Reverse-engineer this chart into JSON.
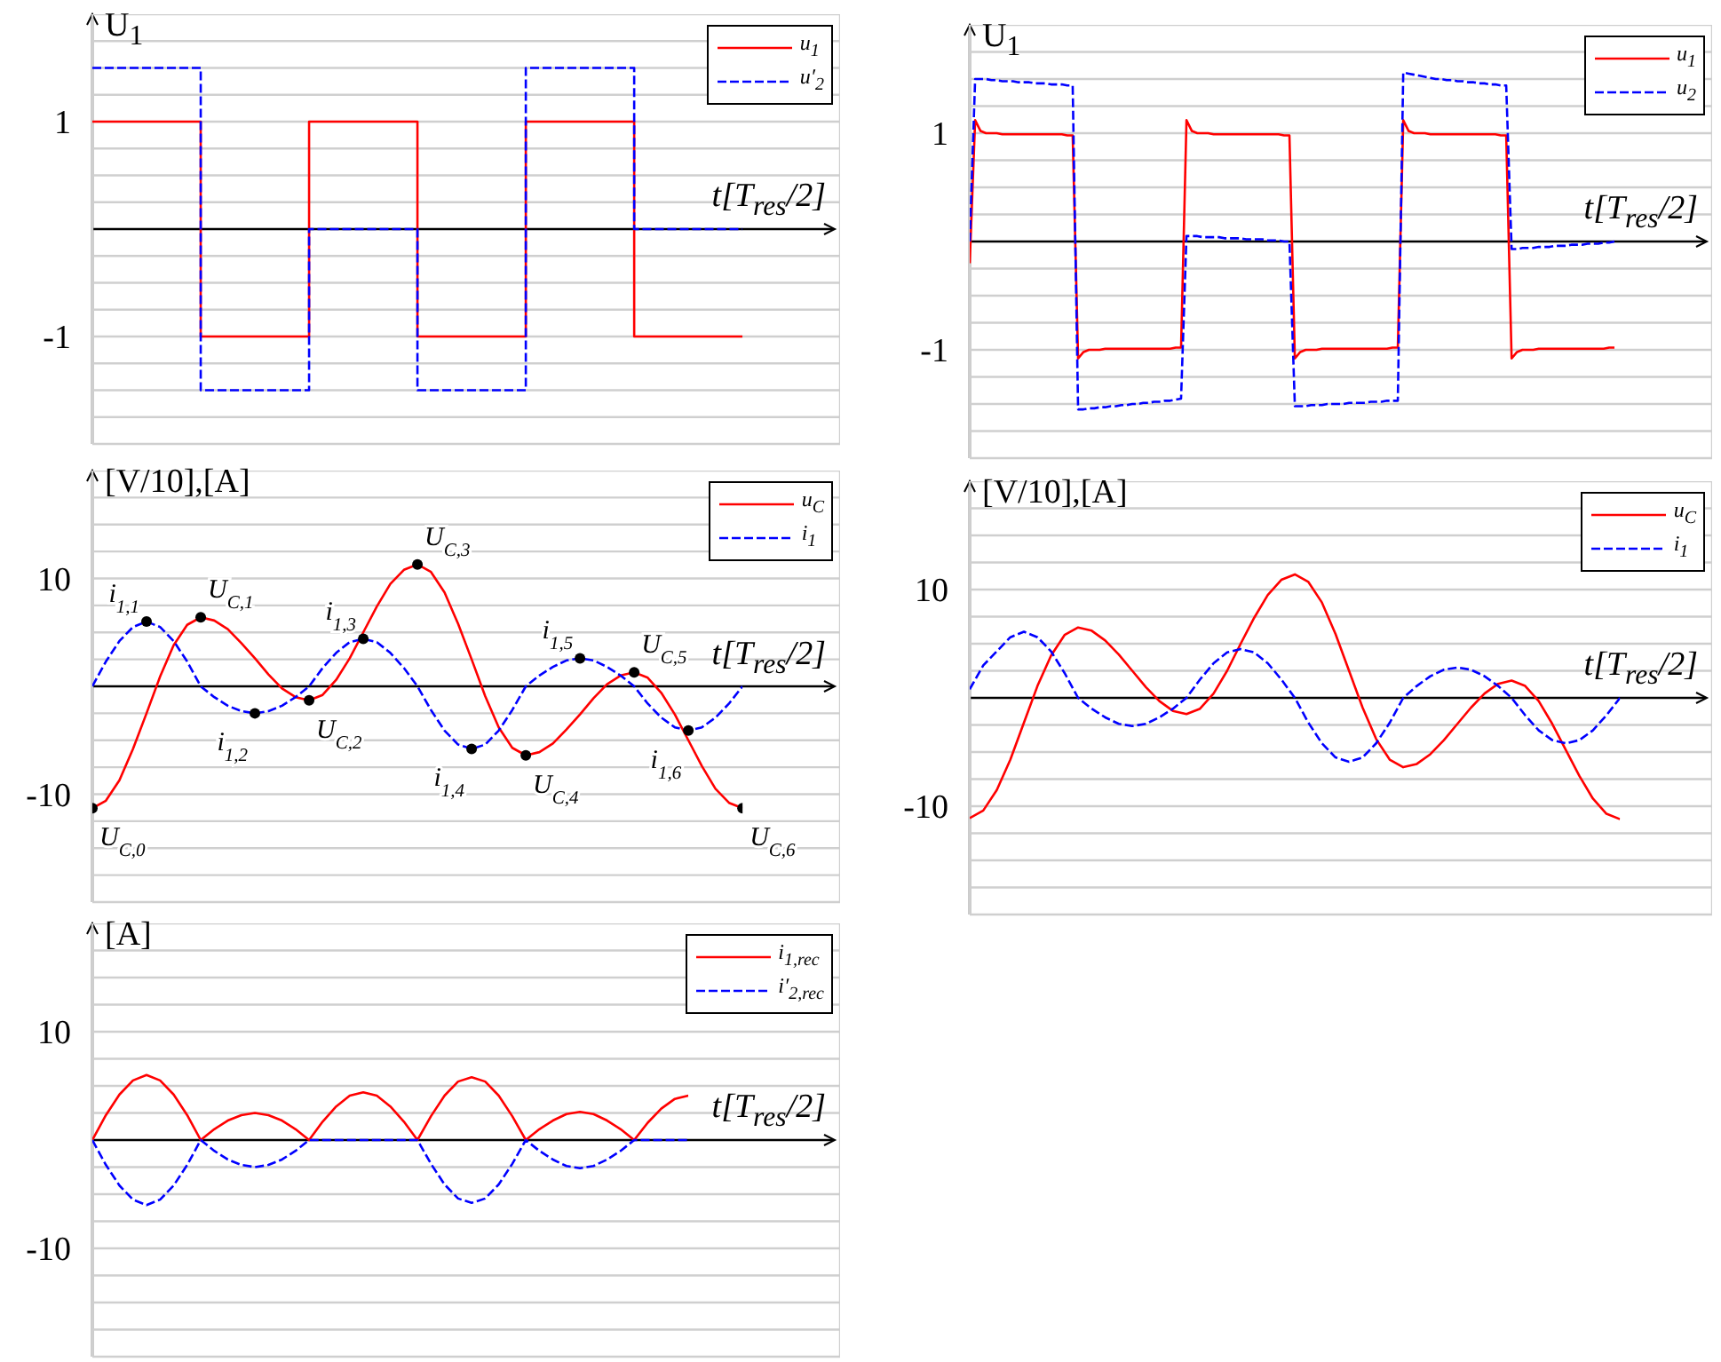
{
  "chart_data": [
    {
      "type": "step",
      "xlabel": "t[T$_{res}$/2]",
      "ylabel": "U$_{1}$",
      "categories": [
        null,
        null,
        null,
        null,
        null,
        null,
        null
      ],
      "series": [
        {
          "name": "u$_{1}$",
          "color": "#ff0000",
          "line_style": "solid",
          "values": [
            1,
            -1,
            1,
            -1,
            1,
            -1,
            -1
          ]
        },
        {
          "name": "u′$_{2}$",
          "color": "#0000ff",
          "line_style": "dashed",
          "values": [
            1.5,
            -1.5,
            0,
            -1.5,
            1.5,
            0,
            0
          ]
        }
      ],
      "ylim": [
        -2,
        2
      ],
      "yticks": [
        {
          "value": -2,
          "label": null
        },
        {
          "value": -1.75,
          "label": null
        },
        {
          "value": -1.5,
          "label": null
        },
        {
          "value": -1.25,
          "label": null
        },
        -1,
        {
          "value": -0.75,
          "label": null
        },
        {
          "value": -0.5,
          "label": null
        },
        {
          "value": -0.25,
          "label": null
        },
        {
          "value": 0,
          "label": null
        },
        {
          "value": 0.25,
          "label": null
        },
        {
          "value": 0.5,
          "label": null
        },
        {
          "value": 0.75,
          "label": null
        },
        1,
        {
          "value": 1.25,
          "label": null
        },
        {
          "value": 1.5,
          "label": null
        },
        {
          "value": 1.75,
          "label": null
        },
        {
          "value": 2,
          "label": null
        }
      ],
      "grid": true,
      "legend": "top right",
      "tick_labels": "y",
      "marker": "none"
    },
    {
      "type": "line",
      "xlabel": "t[T$_{res}$/2]",
      "ylabel": "U$_{1}$",
      "categories": [
        null,
        null,
        null,
        null,
        null,
        null,
        null,
        null,
        null,
        null,
        null,
        null,
        null,
        null,
        null,
        null,
        null,
        null,
        null,
        null,
        null,
        null,
        null,
        null,
        null,
        null,
        null,
        null,
        null,
        null,
        null,
        null,
        null,
        null,
        null,
        null,
        null,
        null,
        null,
        null,
        null,
        null,
        null,
        null,
        null,
        null,
        null,
        null,
        null,
        null,
        null,
        null,
        null,
        null,
        null,
        null,
        null,
        null,
        null,
        null,
        null,
        null,
        null,
        null,
        null,
        null,
        null,
        null,
        null,
        null,
        null,
        null,
        null,
        null,
        null,
        null,
        null,
        null,
        null,
        null,
        null,
        null,
        null,
        null,
        null,
        null,
        null,
        null,
        null,
        null,
        null,
        null,
        null,
        null,
        null,
        null,
        null,
        null,
        null,
        null,
        null,
        null,
        null,
        null,
        null,
        null,
        null,
        null,
        null,
        null,
        null,
        null,
        null,
        null,
        null,
        null,
        null,
        null,
        null,
        null
      ],
      "series": [
        {
          "name": "u$_{1}$",
          "color": "#ff0000",
          "line_style": "solid",
          "values": [
            -0.2,
            1.12,
            1.02,
            1.0,
            1.0,
            1.0,
            0.99,
            0.99,
            0.99,
            0.99,
            0.99,
            0.99,
            0.99,
            0.99,
            0.99,
            0.99,
            0.99,
            0.99,
            0.98,
            0.98,
            -1.08,
            -1.02,
            -1.0,
            -1.0,
            -1.0,
            -0.99,
            -0.99,
            -0.99,
            -0.99,
            -0.99,
            -0.99,
            -0.99,
            -0.99,
            -0.99,
            -0.99,
            -0.99,
            -0.99,
            -0.99,
            -0.98,
            -0.98,
            1.12,
            1.02,
            1.0,
            1.0,
            1.0,
            0.99,
            0.99,
            0.99,
            0.99,
            0.99,
            0.99,
            0.99,
            0.99,
            0.99,
            0.99,
            0.99,
            0.99,
            0.99,
            0.98,
            0.98,
            -1.08,
            -1.02,
            -1.0,
            -1.0,
            -1.0,
            -0.99,
            -0.99,
            -0.99,
            -0.99,
            -0.99,
            -0.99,
            -0.99,
            -0.99,
            -0.99,
            -0.99,
            -0.99,
            -0.99,
            -0.99,
            -0.98,
            -0.98,
            1.12,
            1.02,
            1.0,
            1.0,
            1.0,
            0.99,
            0.99,
            0.99,
            0.99,
            0.99,
            0.99,
            0.99,
            0.99,
            0.99,
            0.99,
            0.99,
            0.99,
            0.99,
            0.98,
            0.98,
            -1.08,
            -1.02,
            -1.0,
            -1.0,
            -1.0,
            -0.99,
            -0.99,
            -0.99,
            -0.99,
            -0.99,
            -0.99,
            -0.99,
            -0.99,
            -0.99,
            -0.99,
            -0.99,
            -0.99,
            -0.99,
            -0.98,
            -0.98
          ]
        },
        {
          "name": "u$_{2}$",
          "color": "#0000ff",
          "line_style": "dashed",
          "values": [
            0,
            1.5,
            1.5,
            1.5,
            1.49,
            1.49,
            1.48,
            1.48,
            1.48,
            1.47,
            1.47,
            1.47,
            1.46,
            1.46,
            1.46,
            1.45,
            1.45,
            1.45,
            1.44,
            1.44,
            -1.55,
            -1.55,
            -1.54,
            -1.54,
            -1.53,
            -1.53,
            -1.52,
            -1.52,
            -1.51,
            -1.51,
            -1.5,
            -1.5,
            -1.49,
            -1.49,
            -1.48,
            -1.48,
            -1.47,
            -1.47,
            -1.46,
            -1.45,
            0.05,
            0.05,
            0.05,
            0.04,
            0.04,
            0.04,
            0.04,
            0.03,
            0.03,
            0.03,
            0.03,
            0.02,
            0.02,
            0.02,
            0.02,
            0.01,
            0.01,
            0.01,
            0,
            0,
            -1.52,
            -1.52,
            -1.52,
            -1.51,
            -1.51,
            -1.51,
            -1.5,
            -1.5,
            -1.5,
            -1.5,
            -1.49,
            -1.49,
            -1.49,
            -1.49,
            -1.48,
            -1.48,
            -1.48,
            -1.47,
            -1.47,
            -1.47,
            1.56,
            1.55,
            1.54,
            1.53,
            1.52,
            1.51,
            1.5,
            1.5,
            1.49,
            1.49,
            1.48,
            1.48,
            1.47,
            1.47,
            1.46,
            1.46,
            1.45,
            1.45,
            1.44,
            1.44,
            -0.07,
            -0.07,
            -0.06,
            -0.06,
            -0.06,
            -0.05,
            -0.05,
            -0.05,
            -0.04,
            -0.04,
            -0.04,
            -0.03,
            -0.03,
            -0.03,
            -0.02,
            -0.02,
            -0.02,
            -0.01,
            -0.01,
            0
          ]
        }
      ],
      "ylim": [
        -2,
        2
      ],
      "yticks": [
        {
          "value": -2,
          "label": null
        },
        {
          "value": -1.75,
          "label": null
        },
        {
          "value": -1.5,
          "label": null
        },
        {
          "value": -1.25,
          "label": null
        },
        -1,
        {
          "value": -0.75,
          "label": null
        },
        {
          "value": -0.5,
          "label": null
        },
        {
          "value": -0.25,
          "label": null
        },
        {
          "value": 0,
          "label": null
        },
        {
          "value": 0.25,
          "label": null
        },
        {
          "value": 0.5,
          "label": null
        },
        {
          "value": 0.75,
          "label": null
        },
        1,
        {
          "value": 1.25,
          "label": null
        },
        {
          "value": 1.5,
          "label": null
        },
        {
          "value": 1.75,
          "label": null
        },
        {
          "value": 2,
          "label": null
        }
      ],
      "grid": true,
      "legend": "top right",
      "tick_labels": "y",
      "marker": "none"
    },
    {
      "type": "line",
      "xlabel": "t[T$_{res}$/2]",
      "ylabel": "[V/10],[A]",
      "categories": [
        null,
        null,
        null,
        null,
        null,
        null,
        null,
        null,
        null,
        null,
        null,
        null,
        null,
        null,
        null,
        null,
        null,
        null,
        null,
        null,
        null,
        null,
        null,
        null,
        null,
        null,
        null,
        null,
        null,
        null,
        null,
        null,
        null,
        null,
        null,
        null,
        null,
        null,
        null,
        null,
        null,
        null,
        null,
        null,
        null,
        null,
        null,
        null,
        null
      ],
      "series": [
        {
          "name": "u$_{C}$",
          "color": "#ff0000",
          "line_style": "solid",
          "values": [
            -11.3,
            -10.6,
            -8.7,
            -5.8,
            -2.5,
            0.9,
            3.8,
            5.7,
            6.4,
            6.1,
            5.3,
            4.0,
            2.6,
            1.1,
            -0.2,
            -1.0,
            -1.3,
            -0.8,
            0.6,
            2.6,
            5.0,
            7.4,
            9.5,
            10.8,
            11.3,
            10.6,
            8.7,
            5.8,
            2.5,
            -0.9,
            -3.8,
            -5.7,
            -6.4,
            -6.1,
            -5.3,
            -4.0,
            -2.6,
            -1.1,
            0.2,
            1.0,
            1.3,
            0.8,
            -0.6,
            -2.6,
            -5.0,
            -7.4,
            -9.5,
            -10.8,
            -11.3
          ]
        },
        {
          "name": "i$_{1}$",
          "color": "#0000ff",
          "line_style": "dashed",
          "values": [
            0,
            2.3,
            4.2,
            5.5,
            6.0,
            5.5,
            4.2,
            2.3,
            0,
            -1.0,
            -1.8,
            -2.3,
            -2.5,
            -2.3,
            -1.8,
            -1.0,
            0,
            1.7,
            3.1,
            4.1,
            4.4,
            4.1,
            3.1,
            1.7,
            0,
            -2.2,
            -4.1,
            -5.4,
            -5.8,
            -5.4,
            -4.1,
            -2.2,
            0,
            1.0,
            1.8,
            2.4,
            2.6,
            2.4,
            1.8,
            1.0,
            0,
            -1.6,
            -2.9,
            -3.8,
            -4.1,
            -3.8,
            -2.9,
            -1.6,
            0
          ]
        },
        {
          "type": "scatter",
          "color": "#000000",
          "marker": "circle",
          "values": [
            -11.3,
            null,
            null,
            null,
            6.0,
            null,
            null,
            null,
            6.4,
            null,
            null,
            null,
            -2.5,
            null,
            null,
            null,
            -1.3,
            null,
            null,
            null,
            4.4,
            null,
            null,
            null,
            11.3,
            null,
            null,
            null,
            -5.8,
            null,
            null,
            null,
            -6.4,
            null,
            null,
            null,
            2.6,
            null,
            null,
            null,
            1.3,
            null,
            null,
            null,
            -4.1,
            null,
            null,
            null,
            -11.3
          ]
        }
      ],
      "annotations": [
        "U$_{C,0}$",
        "i$_{1,1}$",
        "U$_{C,1}$",
        "i$_{1,2}$",
        "U$_{C,2}$",
        "i$_{1,3}$",
        "U$_{C,3}$",
        "i$_{1,4}$",
        "U$_{C,4}$",
        "i$_{1,5}$",
        "U$_{C,5}$",
        "i$_{1,6}$",
        "U$_{C,6}$"
      ],
      "ylim": [
        -20,
        20
      ],
      "yticks": [
        {
          "value": -20,
          "label": null
        },
        {
          "value": -17.5,
          "label": null
        },
        {
          "value": -15,
          "label": null
        },
        {
          "value": -12.5,
          "label": null
        },
        -10,
        {
          "value": -7.5,
          "label": null
        },
        {
          "value": -5,
          "label": null
        },
        {
          "value": -2.5,
          "label": null
        },
        {
          "value": 0,
          "label": null
        },
        {
          "value": 2.5,
          "label": null
        },
        {
          "value": 5,
          "label": null
        },
        {
          "value": 7.5,
          "label": null
        },
        10,
        {
          "value": 12.5,
          "label": null
        },
        {
          "value": 15,
          "label": null
        },
        {
          "value": 17.5,
          "label": null
        },
        {
          "value": 20,
          "label": null
        }
      ],
      "grid": true,
      "legend": "top right",
      "tick_labels": "y",
      "marker": "none"
    },
    {
      "type": "line",
      "xlabel": "t[T$_{res}$/2]",
      "ylabel": "[V/10],[A]",
      "categories": [
        null,
        null,
        null,
        null,
        null,
        null,
        null,
        null,
        null,
        null,
        null,
        null,
        null,
        null,
        null,
        null,
        null,
        null,
        null,
        null,
        null,
        null,
        null,
        null,
        null,
        null,
        null,
        null,
        null,
        null,
        null,
        null,
        null,
        null,
        null,
        null,
        null,
        null,
        null,
        null,
        null,
        null,
        null,
        null,
        null,
        null,
        null,
        null,
        null
      ],
      "series": [
        {
          "name": "u$_{C}$",
          "color": "#ff0000",
          "line_style": "solid",
          "values": [
            -11.1,
            -10.4,
            -8.5,
            -5.7,
            -2.3,
            1.1,
            3.9,
            5.8,
            6.5,
            6.2,
            5.3,
            4.0,
            2.5,
            1.0,
            -0.3,
            -1.2,
            -1.5,
            -1.0,
            0.4,
            2.5,
            5.0,
            7.4,
            9.5,
            10.9,
            11.4,
            10.7,
            8.8,
            5.9,
            2.5,
            -0.9,
            -3.8,
            -5.7,
            -6.4,
            -6.1,
            -5.2,
            -3.9,
            -2.4,
            -0.9,
            0.4,
            1.3,
            1.6,
            1.1,
            -0.3,
            -2.4,
            -4.8,
            -7.2,
            -9.3,
            -10.7,
            -11.2
          ]
        },
        {
          "name": "i$_{1}$",
          "color": "#0000ff",
          "line_style": "dashed",
          "values": [
            0.8,
            3.0,
            4.3,
            5.6,
            6.1,
            5.6,
            4.3,
            2.3,
            0,
            -1.0,
            -1.8,
            -2.4,
            -2.6,
            -2.4,
            -1.8,
            -1.0,
            0,
            1.7,
            3.2,
            4.2,
            4.5,
            4.2,
            3.2,
            1.7,
            0,
            -2.3,
            -4.2,
            -5.5,
            -5.9,
            -5.5,
            -4.2,
            -2.3,
            0,
            1.1,
            2.0,
            2.6,
            2.8,
            2.6,
            2.0,
            1.1,
            0,
            -1.6,
            -3.0,
            -3.9,
            -4.2,
            -3.9,
            -3.0,
            -1.6,
            0
          ]
        }
      ],
      "ylim": [
        -20,
        20
      ],
      "yticks": [
        {
          "value": -20,
          "label": null
        },
        {
          "value": -17.5,
          "label": null
        },
        {
          "value": -15,
          "label": null
        },
        {
          "value": -12.5,
          "label": null
        },
        -10,
        {
          "value": -7.5,
          "label": null
        },
        {
          "value": -5,
          "label": null
        },
        {
          "value": -2.5,
          "label": null
        },
        {
          "value": 0,
          "label": null
        },
        {
          "value": 2.5,
          "label": null
        },
        {
          "value": 5,
          "label": null
        },
        {
          "value": 7.5,
          "label": null
        },
        10,
        {
          "value": 12.5,
          "label": null
        },
        {
          "value": 15,
          "label": null
        },
        {
          "value": 17.5,
          "label": null
        },
        {
          "value": 20,
          "label": null
        }
      ],
      "grid": true,
      "legend": "top right",
      "tick_labels": "y",
      "marker": "none"
    },
    {
      "type": "line",
      "xlabel": "t[T$_{res}$/2]",
      "ylabel": "[A]",
      "categories": [
        null,
        null,
        null,
        null,
        null,
        null,
        null,
        null,
        null,
        null,
        null,
        null,
        null,
        null,
        null,
        null,
        null,
        null,
        null,
        null,
        null,
        null,
        null,
        null,
        null,
        null,
        null,
        null,
        null,
        null,
        null,
        null,
        null,
        null,
        null,
        null,
        null,
        null,
        null,
        null,
        null,
        null,
        null,
        null,
        null
      ],
      "series": [
        {
          "name": "i$_{1,rec}$",
          "color": "#ff0000",
          "line_style": "solid",
          "values": [
            0,
            2.3,
            4.2,
            5.5,
            6.0,
            5.5,
            4.2,
            2.3,
            0,
            1.0,
            1.8,
            2.3,
            2.5,
            2.3,
            1.8,
            1.0,
            0,
            1.7,
            3.1,
            4.1,
            4.4,
            4.1,
            3.1,
            1.7,
            0,
            2.2,
            4.1,
            5.4,
            5.8,
            5.4,
            4.1,
            2.2,
            0,
            1.0,
            1.8,
            2.4,
            2.6,
            2.4,
            1.8,
            1.0,
            0,
            1.6,
            2.9,
            3.8,
            4.1
          ]
        },
        {
          "name": "i′$_{2,rec}$",
          "color": "#0000ff",
          "line_style": "dashed",
          "values": [
            0,
            -2.3,
            -4.2,
            -5.5,
            -6.0,
            -5.5,
            -4.2,
            -2.3,
            0,
            -1.0,
            -1.8,
            -2.3,
            -2.5,
            -2.3,
            -1.8,
            -1.0,
            0,
            0,
            0,
            0,
            0,
            0,
            0,
            0,
            0,
            -2.2,
            -4.1,
            -5.4,
            -5.8,
            -5.4,
            -4.1,
            -2.2,
            0,
            -1.0,
            -1.8,
            -2.4,
            -2.6,
            -2.4,
            -1.8,
            -1.0,
            0,
            0,
            0,
            0,
            0
          ]
        }
      ],
      "ylim": [
        -20,
        20
      ],
      "yticks": [
        {
          "value": -20,
          "label": null
        },
        {
          "value": -17.5,
          "label": null
        },
        {
          "value": -15,
          "label": null
        },
        {
          "value": -12.5,
          "label": null
        },
        -10,
        {
          "value": -7.5,
          "label": null
        },
        {
          "value": -5,
          "label": null
        },
        {
          "value": -2.5,
          "label": null
        },
        {
          "value": 0,
          "label": null
        },
        {
          "value": 2.5,
          "label": null
        },
        {
          "value": 5,
          "label": null
        },
        {
          "value": 7.5,
          "label": null
        },
        10,
        {
          "value": 12.5,
          "label": null
        },
        {
          "value": 15,
          "label": null
        },
        {
          "value": 17.5,
          "label": null
        },
        {
          "value": 20,
          "label": null
        }
      ],
      "grid": true,
      "legend": "top right",
      "tick_labels": "y",
      "marker": "none"
    }
  ]
}
